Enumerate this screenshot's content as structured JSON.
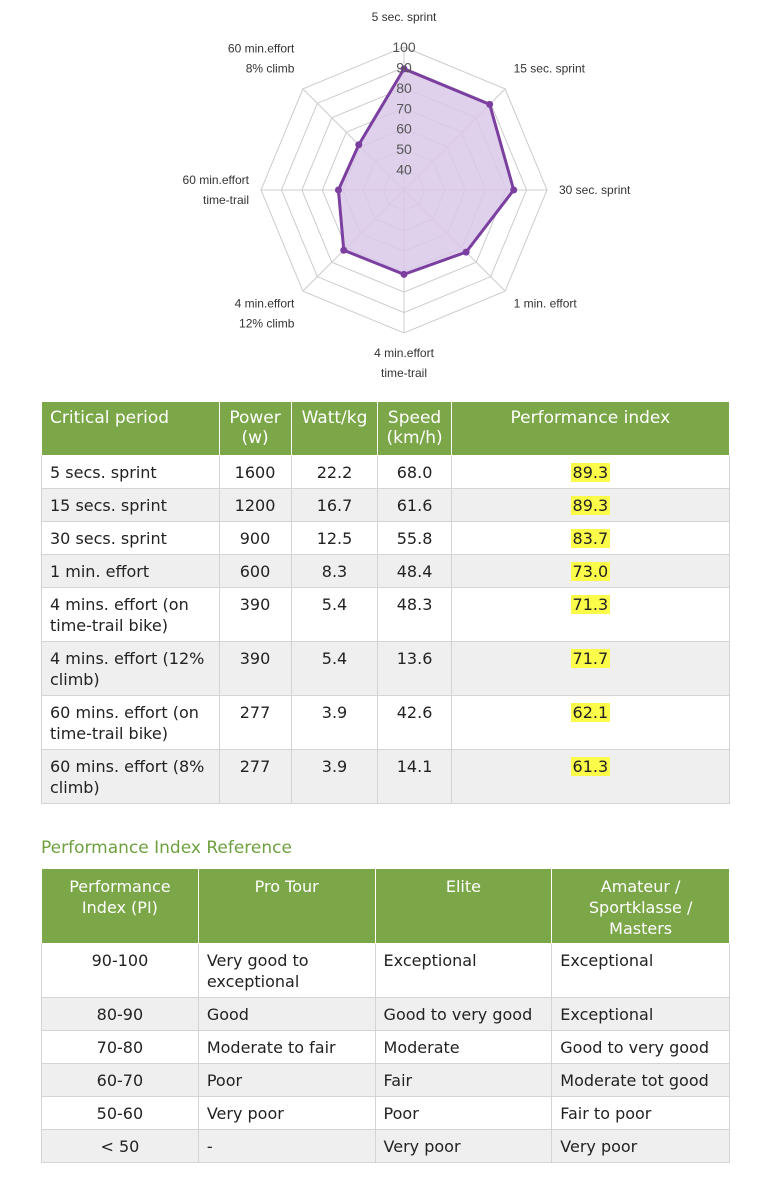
{
  "chart_data": {
    "type": "radar",
    "axes": [
      [
        "5 sec. sprint"
      ],
      [
        "15 sec. sprint"
      ],
      [
        "30 sec. sprint"
      ],
      [
        "1 min. effort"
      ],
      [
        "4 min.effort",
        "time-trail"
      ],
      [
        "4 min.effort",
        "12% climb"
      ],
      [
        "60 min.effort",
        "time-trail"
      ],
      [
        "60 min.effort",
        "8% climb"
      ]
    ],
    "values": [
      89.3,
      89.3,
      83.7,
      73.0,
      71.3,
      71.7,
      62.1,
      61.3
    ],
    "rlim": [
      30,
      100
    ],
    "ticks": [
      40,
      50,
      60,
      70,
      80,
      90,
      100
    ],
    "grid": true,
    "colors": {
      "line": "#7b3fa0",
      "fill": "#d9c8e8",
      "grid": "#cccccc"
    }
  },
  "results_table": {
    "headers": [
      "Critical period",
      "Power (w)",
      "Watt/kg",
      "Speed (km/h)",
      "Performance index"
    ],
    "rows": [
      [
        "5 secs. sprint",
        "1600",
        "22.2",
        "68.0",
        "89.3"
      ],
      [
        "15 secs. sprint",
        "1200",
        "16.7",
        "61.6",
        "89.3"
      ],
      [
        "30 secs. sprint",
        "900",
        "12.5",
        "55.8",
        "83.7"
      ],
      [
        "1 min. effort",
        "600",
        "8.3",
        "48.4",
        "73.0"
      ],
      [
        "4 mins. effort (on time-trail bike)",
        "390",
        "5.4",
        "48.3",
        "71.3"
      ],
      [
        "4 mins. effort (12% climb)",
        "390",
        "5.4",
        "13.6",
        "71.7"
      ],
      [
        "60 mins. effort (on time-trail bike)",
        "277",
        "3.9",
        "42.6",
        "62.1"
      ],
      [
        "60 mins. effort (8% climb)",
        "277",
        "3.9",
        "14.1",
        "61.3"
      ]
    ]
  },
  "reference": {
    "title": "Performance Index Reference",
    "headers": [
      "Performance Index (PI)",
      "Pro Tour",
      "Elite",
      "Amateur / Sportklasse / Masters"
    ],
    "rows": [
      [
        "90-100",
        "Very good to exceptional",
        "Exceptional",
        "Exceptional"
      ],
      [
        "80-90",
        "Good",
        "Good to very good",
        "Exceptional"
      ],
      [
        "70-80",
        "Moderate to fair",
        "Moderate",
        "Good to very good"
      ],
      [
        "60-70",
        "Poor",
        "Fair",
        "Moderate tot good"
      ],
      [
        "50-60",
        "Very poor",
        "Poor",
        "Fair to poor"
      ],
      [
        "< 50",
        "-",
        "Very poor",
        "Very poor"
      ]
    ]
  },
  "colors": {
    "header_green": "#7ba748",
    "title_green": "#6ea03f",
    "highlight": "#fbfb4a"
  }
}
